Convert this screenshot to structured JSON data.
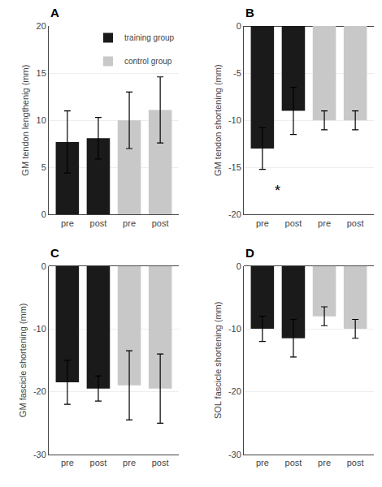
{
  "chart_data": [
    {
      "type": "bar",
      "title": "A",
      "ylabel": "GM tendon lengthenig (mm)",
      "categories": [
        "pre",
        "post",
        "pre",
        "post"
      ],
      "series": [
        {
          "name": "training group",
          "color": "#1a1a1a",
          "values": [
            7.7,
            8.1,
            null,
            null
          ],
          "errors": [
            3.3,
            2.2,
            null,
            null
          ]
        },
        {
          "name": "control group",
          "color": "#c8c8c8",
          "values": [
            null,
            null,
            10.0,
            11.1
          ],
          "errors": [
            null,
            null,
            3.0,
            3.5
          ]
        }
      ],
      "ylim": [
        0,
        20
      ],
      "yticks": [
        0,
        5,
        10,
        15,
        20
      ],
      "legend": "upper right"
    },
    {
      "type": "bar",
      "title": "B",
      "ylabel": "GM tendon shortening (mm)",
      "categories": [
        "pre",
        "post",
        "pre",
        "post"
      ],
      "series": [
        {
          "name": "training group",
          "color": "#1a1a1a",
          "values": [
            -13.0,
            -9.0,
            null,
            null
          ],
          "errors": [
            2.2,
            2.5,
            null,
            null
          ]
        },
        {
          "name": "control group",
          "color": "#c8c8c8",
          "values": [
            null,
            null,
            -10.0,
            -10.0
          ],
          "errors": [
            null,
            null,
            1.0,
            1.0
          ]
        }
      ],
      "ylim": [
        -20,
        0
      ],
      "yticks": [
        -20,
        -15,
        -10,
        -5,
        0
      ],
      "annotations": [
        {
          "text": "*",
          "x": 0.5,
          "y": -17.5
        }
      ]
    },
    {
      "type": "bar",
      "title": "C",
      "ylabel": "GM fascicle shortening (mm)",
      "categories": [
        "pre",
        "post",
        "pre",
        "post"
      ],
      "series": [
        {
          "name": "training group",
          "color": "#1a1a1a",
          "values": [
            -18.5,
            -19.5,
            null,
            null
          ],
          "errors": [
            3.5,
            2.0,
            null,
            null
          ]
        },
        {
          "name": "control group",
          "color": "#c8c8c8",
          "values": [
            null,
            null,
            -19.0,
            -19.5
          ],
          "errors": [
            null,
            null,
            5.5,
            5.5
          ]
        }
      ],
      "ylim": [
        -30,
        0
      ],
      "yticks": [
        -30,
        -20,
        -10,
        0
      ]
    },
    {
      "type": "bar",
      "title": "D",
      "ylabel": "SOL fascicle shortening (mm)",
      "categories": [
        "pre",
        "post",
        "pre",
        "post"
      ],
      "series": [
        {
          "name": "training group",
          "color": "#1a1a1a",
          "values": [
            -10.0,
            -11.5,
            null,
            null
          ],
          "errors": [
            2.0,
            3.0,
            null,
            null
          ]
        },
        {
          "name": "control group",
          "color": "#c8c8c8",
          "values": [
            null,
            null,
            -8.0,
            -10.0
          ],
          "errors": [
            null,
            null,
            1.5,
            1.5
          ]
        }
      ],
      "ylim": [
        -30,
        0
      ],
      "yticks": [
        -30,
        -20,
        -10,
        0
      ]
    }
  ]
}
